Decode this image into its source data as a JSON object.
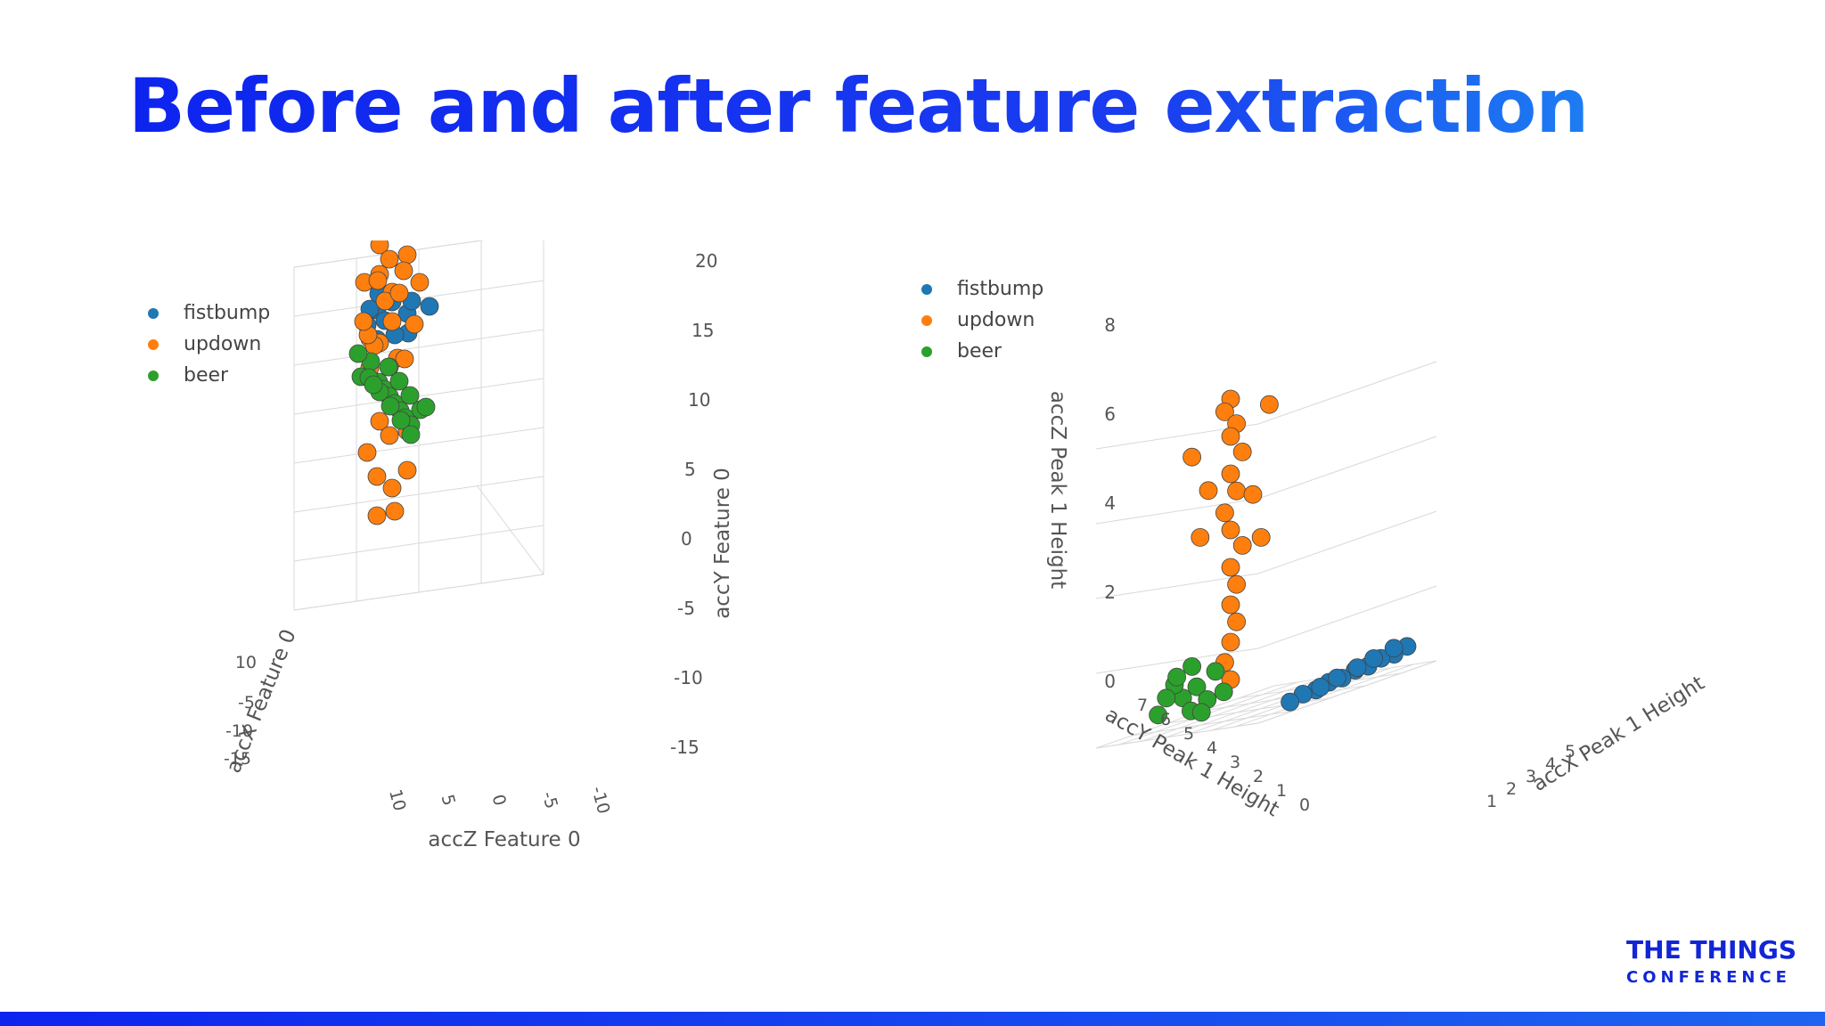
{
  "slide": {
    "title": "Before and after feature extraction",
    "logo_line1": "THE THINGS",
    "logo_line2": "CONFERENCE",
    "accent_color": "#0d24ef"
  },
  "chart_data": [
    {
      "type": "scatter",
      "title": "",
      "legend": [
        "fistbump",
        "updown",
        "beer"
      ],
      "legend_placement": "top-left",
      "series_colors": {
        "fistbump": "#1f77b4",
        "updown": "#ff7f0e",
        "beer": "#2ca02c"
      },
      "axes": {
        "x": {
          "label": "accX Feature 0",
          "ticks": [
            "10",
            "5",
            "0",
            "-5",
            "-10",
            "-15"
          ]
        },
        "y": {
          "label": "accY Feature 0",
          "ticks": [
            "20",
            "15",
            "10",
            "5",
            "0",
            "-5",
            "-10",
            "-15"
          ]
        },
        "z": {
          "label": "accZ Feature 0",
          "ticks": [
            "10",
            "5",
            "0",
            "-5",
            "-10"
          ]
        }
      },
      "series": [
        {
          "name": "fistbump",
          "points": [
            [
              -1,
              10,
              1
            ],
            [
              1,
              10,
              -1
            ],
            [
              0,
              11,
              0
            ],
            [
              -2,
              10,
              -2
            ],
            [
              2,
              10,
              1
            ],
            [
              0,
              9,
              2
            ],
            [
              6,
              10,
              0
            ],
            [
              -5,
              10,
              0
            ],
            [
              1,
              8,
              0
            ],
            [
              -1,
              7,
              1
            ],
            [
              0,
              10,
              -3
            ],
            [
              1,
              11,
              2
            ]
          ]
        },
        {
          "name": "updown",
          "points": [
            [
              0,
              17,
              1
            ],
            [
              1,
              16,
              -1
            ],
            [
              -1,
              15,
              0
            ],
            [
              0,
              14,
              1
            ],
            [
              1,
              13,
              -2
            ],
            [
              -1,
              13,
              2
            ],
            [
              0,
              12,
              0
            ],
            [
              2,
              12,
              1
            ],
            [
              -2,
              11,
              -1
            ],
            [
              0,
              9,
              0
            ],
            [
              1,
              8,
              2
            ],
            [
              -1,
              8,
              -2
            ],
            [
              0,
              7,
              1
            ],
            [
              2,
              6,
              0
            ],
            [
              -2,
              6,
              1
            ],
            [
              0,
              5,
              -1
            ],
            [
              1,
              5,
              2
            ],
            [
              -1,
              4,
              0
            ],
            [
              0,
              -1,
              1
            ],
            [
              1,
              -2,
              -1
            ],
            [
              -1,
              -3,
              0
            ],
            [
              0,
              -4,
              2
            ],
            [
              1,
              -6,
              -1
            ],
            [
              -1,
              -7,
              1
            ],
            [
              0,
              -8,
              0
            ],
            [
              1,
              -10,
              0
            ],
            [
              -1,
              -11,
              1
            ],
            [
              4,
              15,
              2
            ],
            [
              -5,
              12,
              -2
            ],
            [
              5,
              10,
              3
            ],
            [
              -6,
              7,
              1
            ]
          ]
        },
        {
          "name": "beer",
          "points": [
            [
              -8,
              2,
              0
            ],
            [
              -7,
              1,
              1
            ],
            [
              -6,
              2,
              -1
            ],
            [
              -5,
              1,
              0
            ],
            [
              -4,
              2,
              1
            ],
            [
              -3,
              1,
              0
            ],
            [
              -2,
              2,
              -1
            ],
            [
              -1,
              1,
              0
            ],
            [
              0,
              2,
              1
            ],
            [
              1,
              1,
              0
            ],
            [
              2,
              2,
              -1
            ],
            [
              3,
              1,
              0
            ],
            [
              4,
              2,
              1
            ],
            [
              5,
              1,
              0
            ],
            [
              6,
              2,
              -1
            ],
            [
              7,
              1,
              0
            ],
            [
              8,
              2,
              1
            ],
            [
              -7,
              0,
              0
            ],
            [
              7,
              0,
              0
            ],
            [
              -8,
              3,
              1
            ],
            [
              8,
              3,
              -1
            ]
          ]
        }
      ]
    },
    {
      "type": "scatter",
      "title": "",
      "legend": [
        "fistbump",
        "updown",
        "beer"
      ],
      "legend_placement": "top-left",
      "series_colors": {
        "fistbump": "#1f77b4",
        "updown": "#ff7f0e",
        "beer": "#2ca02c"
      },
      "axes": {
        "x": {
          "label": "accX Peak 1 Height",
          "ticks": [
            "1",
            "2",
            "3",
            "4",
            "5"
          ]
        },
        "y": {
          "label": "accY Peak 1 Height",
          "ticks": [
            "7",
            "6",
            "5",
            "4",
            "3",
            "2",
            "1",
            "0"
          ]
        },
        "z": {
          "label": "accZ Peak 1 Height",
          "ticks": [
            "8",
            "6",
            "4",
            "2",
            "0"
          ]
        }
      },
      "series": [
        {
          "name": "fistbump",
          "points": [
            [
              4.5,
              0.5,
              0.6
            ],
            [
              4.2,
              0.6,
              0.5
            ],
            [
              3.9,
              0.7,
              0.5
            ],
            [
              3.6,
              0.8,
              0.4
            ],
            [
              3.3,
              0.9,
              0.4
            ],
            [
              3.0,
              1.0,
              0.3
            ],
            [
              2.7,
              1.1,
              0.3
            ],
            [
              2.4,
              1.2,
              0.2
            ],
            [
              2.1,
              1.3,
              0.2
            ],
            [
              1.8,
              1.4,
              0.1
            ],
            [
              4.0,
              0.3,
              0.7
            ],
            [
              3.5,
              0.4,
              0.6
            ],
            [
              3.1,
              0.5,
              0.5
            ],
            [
              2.6,
              0.6,
              0.4
            ],
            [
              2.2,
              0.7,
              0.3
            ]
          ]
        },
        {
          "name": "updown",
          "points": [
            [
              1.5,
              3.5,
              8.5
            ],
            [
              1.4,
              3.6,
              8.2
            ],
            [
              1.6,
              3.4,
              7.8
            ],
            [
              1.5,
              3.5,
              7.5
            ],
            [
              1.7,
              3.3,
              7.0
            ],
            [
              1.5,
              3.5,
              6.5
            ],
            [
              1.6,
              3.4,
              6.0
            ],
            [
              1.4,
              3.6,
              5.5
            ],
            [
              1.5,
              3.5,
              5.0
            ],
            [
              1.7,
              3.3,
              4.5
            ],
            [
              1.5,
              3.5,
              4.0
            ],
            [
              1.6,
              3.4,
              3.5
            ],
            [
              1.5,
              3.5,
              3.0
            ],
            [
              1.6,
              3.4,
              2.5
            ],
            [
              1.5,
              3.5,
              2.0
            ],
            [
              1.4,
              3.6,
              1.5
            ],
            [
              1.5,
              3.5,
              1.0
            ],
            [
              1.2,
              4.0,
              6.2
            ],
            [
              1.8,
              3.0,
              5.8
            ],
            [
              1.1,
              4.2,
              5.0
            ],
            [
              1.9,
              2.8,
              4.6
            ],
            [
              1.0,
              4.4,
              7.2
            ],
            [
              2.0,
              2.6,
              8.1
            ]
          ]
        },
        {
          "name": "beer",
          "points": [
            [
              1.2,
              4.5,
              1.0
            ],
            [
              1.0,
              4.8,
              0.8
            ],
            [
              0.9,
              5.0,
              1.2
            ],
            [
              1.3,
              4.2,
              0.6
            ],
            [
              1.1,
              4.6,
              0.4
            ],
            [
              0.8,
              5.2,
              0.9
            ],
            [
              1.4,
              4.0,
              1.3
            ],
            [
              1.0,
              4.4,
              1.6
            ],
            [
              0.7,
              5.4,
              0.5
            ],
            [
              1.5,
              3.8,
              0.7
            ],
            [
              1.2,
              4.3,
              0.3
            ],
            [
              0.9,
              4.9,
              1.4
            ]
          ]
        }
      ]
    }
  ]
}
